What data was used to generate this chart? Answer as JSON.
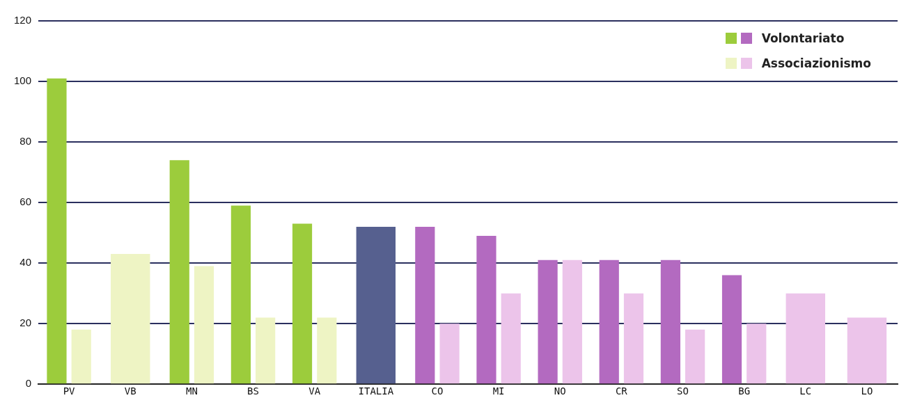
{
  "chart_data": {
    "type": "bar",
    "categories": [
      "PV",
      "VB",
      "MN",
      "BS",
      "VA",
      "ITALIA",
      "CO",
      "MI",
      "NO",
      "CR",
      "SO",
      "BG",
      "LC",
      "LO"
    ],
    "series": [
      {
        "name": "Volontariato",
        "colors": [
          "#9ccc3c",
          "#9ccc3c",
          "#9ccc3c",
          "#9ccc3c",
          "#9ccc3c",
          "#56608f",
          "#b36ac0",
          "#b36ac0",
          "#b36ac0",
          "#b36ac0",
          "#b36ac0",
          "#b36ac0",
          "#b36ac0",
          "#b36ac0"
        ],
        "values": [
          101,
          null,
          74,
          59,
          53,
          52,
          52,
          49,
          41,
          41,
          41,
          36,
          null,
          null
        ]
      },
      {
        "name": "Associazionismo",
        "colors": [
          "#eef4c4",
          "#eef4c4",
          "#eef4c4",
          "#eef4c4",
          "#eef4c4",
          "#eef4c4",
          "#ecc4ea",
          "#ecc4ea",
          "#ecc4ea",
          "#ecc4ea",
          "#ecc4ea",
          "#ecc4ea",
          "#ecc4ea",
          "#ecc4ea"
        ],
        "values": [
          18,
          43,
          39,
          22,
          22,
          null,
          20,
          30,
          41,
          30,
          18,
          20,
          30,
          22
        ]
      }
    ],
    "ylim": [
      0,
      120
    ],
    "yticks": [
      0,
      20,
      40,
      60,
      80,
      100,
      120
    ],
    "grid": "y",
    "legend": "top right"
  }
}
